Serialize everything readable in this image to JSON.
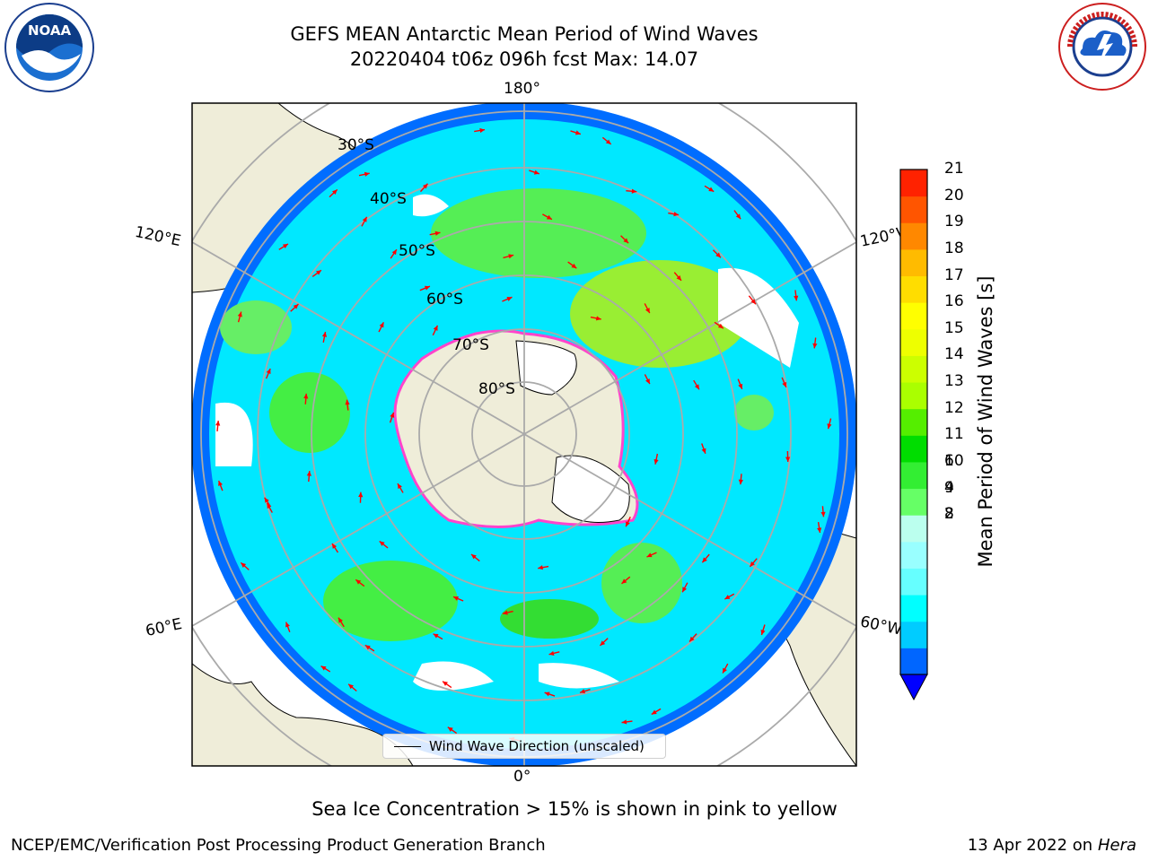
{
  "title": {
    "line1": "GEFS MEAN Antarctic Mean Period of Wind Waves",
    "line2": "20220404 t06z 096h fcst   Max: 14.07"
  },
  "map": {
    "projection": "south-polar-stereographic",
    "longitude_labels": {
      "top": "180°",
      "upper_left": "120°E",
      "upper_right": "120°W",
      "lower_left": "60°E",
      "lower_right": "60°W",
      "bottom": "0°"
    },
    "latitude_labels": [
      "30°S",
      "40°S",
      "50°S",
      "60°S",
      "70°S",
      "80°S"
    ],
    "legend_label": "Wind Wave Direction (unscaled)",
    "arrow_color": "#ff0000",
    "land_color": "#efedd9",
    "ice_edge_colors": [
      "#ff33cc",
      "#ffcc33"
    ]
  },
  "colorbar": {
    "label": "Mean Period of Wind Waves [s]",
    "ticks": [
      "21",
      "20",
      "19",
      "18",
      "17",
      "16",
      "15",
      "14",
      "13",
      "12",
      "11",
      "10",
      "9",
      "8",
      "6",
      "4",
      "2"
    ],
    "levels": [
      2,
      3,
      4,
      5,
      6,
      7,
      8,
      9,
      10,
      11,
      12,
      13,
      14,
      15,
      16,
      17,
      18,
      19,
      20,
      21
    ],
    "colors": [
      "#0000ff",
      "#0066ff",
      "#00ccff",
      "#00ffff",
      "#66ffff",
      "#99ffff",
      "#bbffee",
      "#66ff66",
      "#33ee33",
      "#00dd00",
      "#55ee00",
      "#aaff00",
      "#ccff00",
      "#eeff00",
      "#ffff00",
      "#ffdd00",
      "#ffbb00",
      "#ff8800",
      "#ff5500",
      "#ff2200",
      "#ff0000"
    ],
    "extend": "min"
  },
  "subtitle": "Sea Ice Concentration > 15% is shown in pink to yellow",
  "footer": {
    "left": "NCEP/EMC/Verification Post Processing Product Generation Branch",
    "right_date": "13 Apr 2022 on",
    "right_host": "Hera"
  },
  "logos": {
    "left": {
      "name": "noaa-logo",
      "text": "NOAA",
      "ring_text": "NATIONAL OCEANIC AND ATMOSPHERIC ADMINISTRATION · U.S. DEPARTMENT OF COMMERCE"
    },
    "right": {
      "name": "nws-logo",
      "ring_text": "NATIONAL WEATHER SERVICE"
    }
  }
}
